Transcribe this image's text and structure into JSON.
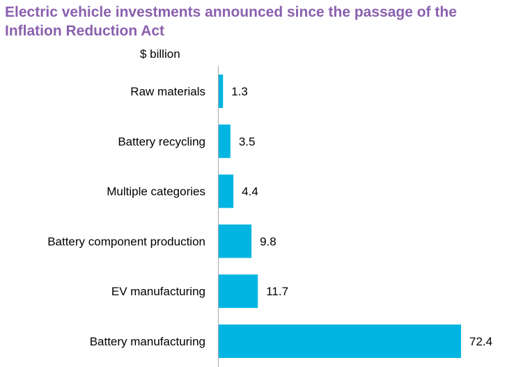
{
  "chart_data": {
    "type": "bar",
    "orientation": "horizontal",
    "title": "Electric vehicle investments announced since the passage of the Inflation Reduction Act",
    "unit_label": "$ billion",
    "categories": [
      "Raw materials",
      "Battery recycling",
      "Multiple categories",
      "Battery component production",
      "EV manufacturing",
      "Battery manufacturing"
    ],
    "values": [
      1.3,
      3.5,
      4.4,
      9.8,
      11.7,
      72.4
    ],
    "value_labels": [
      "1.3",
      "3.5",
      "4.4",
      "9.8",
      "11.7",
      "72.4"
    ],
    "xlim": [
      0,
      72.4
    ],
    "grid": false,
    "bar_color": "#00b5e2",
    "title_color": "#8a60ae"
  }
}
